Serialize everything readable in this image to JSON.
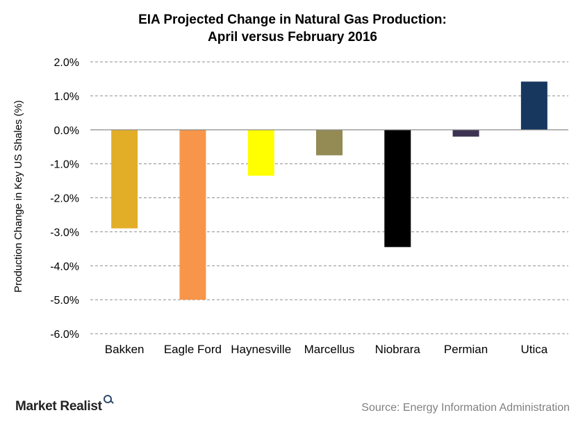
{
  "chart_data": {
    "type": "bar",
    "title_lines": [
      "EIA Projected Change in Natural Gas Production:",
      "April versus February 2016"
    ],
    "ylabel": "Production Change in Key US Shales (%)",
    "xlabel": "",
    "categories": [
      "Bakken",
      "Eagle Ford",
      "Haynesville",
      "Marcellus",
      "Niobrara",
      "Permian",
      "Utica"
    ],
    "values": [
      -2.9,
      -5.0,
      -1.35,
      -0.75,
      -3.45,
      -0.2,
      1.42
    ],
    "colors": [
      "#E3AE27",
      "#F7964A",
      "#FFFF00",
      "#948A54",
      "#000000",
      "#3D3251",
      "#17375E"
    ],
    "ylim": [
      -6.0,
      2.0
    ],
    "yticks": [
      "-6.0%",
      "-5.0%",
      "-4.0%",
      "-3.0%",
      "-2.0%",
      "-1.0%",
      "0.0%",
      "1.0%",
      "2.0%"
    ],
    "grid": true,
    "grid_style": "dashed"
  },
  "footer": {
    "brand": "Market Realist",
    "brand_icon": "magnifier-icon",
    "source": "Source: Energy Information Administration"
  }
}
